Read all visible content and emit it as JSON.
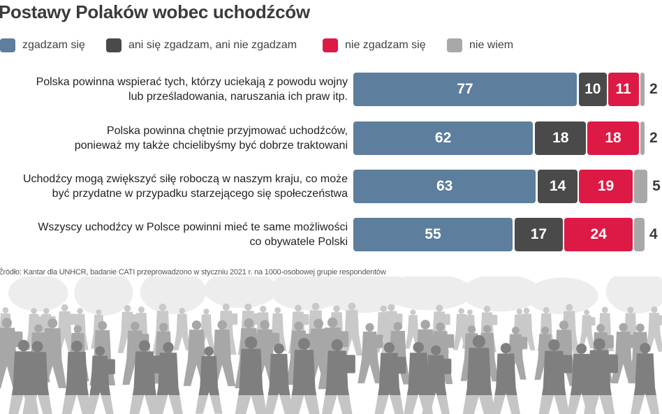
{
  "title": "Postawy Polaków wobec uchodźców",
  "legend": [
    {
      "label": "zgadzam się",
      "color": "#5d7e9c"
    },
    {
      "label": "ani się zgadzam, ani nie zgadzam",
      "color": "#4a4a4a"
    },
    {
      "label": "nie zgadzam się",
      "color": "#dd1a45"
    },
    {
      "label": "nie wiem",
      "color": "#a8a8a8"
    }
  ],
  "chart_data": {
    "type": "bar",
    "stacked": true,
    "orientation": "horizontal",
    "title": "Postawy Polaków wobec uchodźców",
    "categories": [
      "Polska powinna wspierać tych, którzy uciekają z powodu wojny lub prześladowania, naruszania ich praw itp.",
      "Polska powinna chętnie przyjmować uchodźców, ponieważ my także chcielibyśmy być dobrze traktowani",
      "Uchodźcy mogą zwiększyć siłę roboczą w naszym kraju, co może być przydatne w przypadku starzejącego się społeczeństwa",
      "Wszyscy uchodźcy w Polsce powinni mieć te same możliwości co obywatele Polski"
    ],
    "category_lines": [
      [
        "Polska powinna wspierać tych, którzy uciekają z powodu wojny",
        "lub prześladowania, naruszania ich praw itp."
      ],
      [
        "Polska powinna chętnie przyjmować uchodźców,",
        "ponieważ my także chcielibyśmy być dobrze traktowani"
      ],
      [
        "Uchodźcy mogą zwiększyć siłę roboczą w naszym kraju, co może",
        "być przydatne w przypadku starzejącego się społeczeństwa"
      ],
      [
        "Wszyscy uchodźcy w Polsce powinni mieć te same możliwości",
        "co obywatele Polski"
      ]
    ],
    "series": [
      {
        "name": "zgadzam się",
        "values": [
          77,
          62,
          63,
          55
        ],
        "color": "#5d7e9c"
      },
      {
        "name": "ani się zgadzam, ani nie zgadzam",
        "values": [
          10,
          18,
          14,
          17
        ],
        "color": "#4a4a4a"
      },
      {
        "name": "nie zgadzam się",
        "values": [
          11,
          18,
          19,
          24
        ],
        "color": "#dd1a45"
      },
      {
        "name": "nie wiem",
        "values": [
          2,
          2,
          5,
          4
        ],
        "color": "#a8a8a8"
      }
    ],
    "legend_position": "top",
    "grid": false
  },
  "source": "Źródło: Kantar dla UNHCR, badanie CATI przeprowadzono w styczniu 2021 r. na 1000-osobowej grupie respondentów"
}
